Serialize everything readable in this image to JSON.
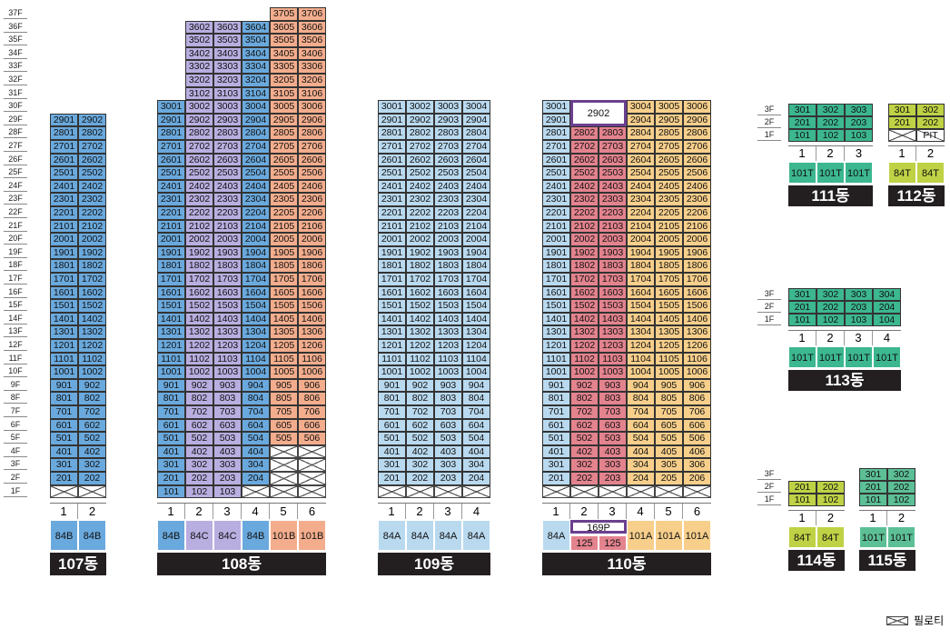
{
  "colors": {
    "b84A": "#b9d9ef",
    "b84B": "#6aa9dd",
    "p84C": "#b9aee0",
    "o101B": "#f3ad8d",
    "r125": "#e3838e",
    "y101A": "#f7cf8b",
    "g101T": "#3cb78f",
    "y84T": "#bfd245",
    "cg101T": "#5cbf96",
    "bldgBg": "#231f20"
  },
  "floor_labels": [
    "37F",
    "36F",
    "35F",
    "34F",
    "33F",
    "32F",
    "31F",
    "30F",
    "29F",
    "28F",
    "27F",
    "26F",
    "25F",
    "24F",
    "23F",
    "22F",
    "21F",
    "20F",
    "19F",
    "18F",
    "17F",
    "16F",
    "15F",
    "14F",
    "13F",
    "12F",
    "11F",
    "10F",
    "9F",
    "8F",
    "7F",
    "6F",
    "5F",
    "4F",
    "3F",
    "2F",
    "1F"
  ],
  "legend": {
    "label": "필로티"
  },
  "large_buildings": [
    {
      "id": "107",
      "name": "107동",
      "x": 55,
      "lines": 2,
      "top_floor": 29,
      "min_floor": 2,
      "line_colors": [
        "b84B",
        "b84B"
      ],
      "line_types": [
        "84B",
        "84B"
      ],
      "overrides": {}
    },
    {
      "id": "108",
      "name": "108동",
      "x": 173,
      "lines": 6,
      "top_floor": 37,
      "min_floor": 1,
      "line_colors": [
        "b84B",
        "p84C",
        "p84C",
        "b84B",
        "o101B",
        "o101B"
      ],
      "line_types": [
        "84B",
        "84C",
        "84C",
        "84B",
        "101B",
        "101B"
      ],
      "line_top": [
        30,
        36,
        36,
        36,
        37,
        37
      ],
      "line_min": [
        1,
        1,
        1,
        2,
        5,
        5
      ],
      "overrides": {}
    },
    {
      "id": "109",
      "name": "109동",
      "x": 416,
      "lines": 4,
      "top_floor": 30,
      "min_floor": 2,
      "line_colors": [
        "b84A",
        "b84A",
        "b84A",
        "b84A"
      ],
      "line_types": [
        "84A",
        "84A",
        "84A",
        "84A"
      ],
      "overrides": {}
    },
    {
      "id": "110",
      "name": "110동",
      "x": 597,
      "lines": 6,
      "top_floor": 30,
      "min_floor": 2,
      "line_colors": [
        "b84A",
        "r125",
        "r125",
        "y101A",
        "y101A",
        "y101A"
      ],
      "line_types": [
        "84A",
        "125",
        "125",
        "101A",
        "101A",
        "101A"
      ],
      "line_top": [
        30,
        28,
        28,
        30,
        30,
        30
      ],
      "special_2902": "2902",
      "special_169p": "169P",
      "overrides": {}
    }
  ],
  "small_buildings": [
    {
      "id": "111",
      "name": "111동",
      "x": 868,
      "y": 114,
      "lines": 3,
      "rows": [
        [
          "301",
          "302",
          "303"
        ],
        [
          "201",
          "202",
          "203"
        ],
        [
          "101",
          "102",
          "103"
        ]
      ],
      "color": "g101T",
      "types": [
        "101T",
        "101T",
        "101T"
      ],
      "pil": [],
      "pit": null
    },
    {
      "id": "112",
      "name": "112동",
      "x": 978,
      "y": 114,
      "lines": 2,
      "rows": [
        [
          "301",
          "302"
        ],
        [
          "201",
          "202"
        ],
        [
          "",
          ""
        ]
      ],
      "color": "y84T",
      "types": [
        "84T",
        "84T"
      ],
      "pil": [
        0
      ],
      "pit": "PIT"
    },
    {
      "id": "113",
      "name": "113동",
      "x": 868,
      "y": 317,
      "lines": 4,
      "rows": [
        [
          "301",
          "302",
          "303",
          "304"
        ],
        [
          "201",
          "202",
          "203",
          "204"
        ],
        [
          "101",
          "102",
          "103",
          "104"
        ]
      ],
      "color": "g101T",
      "types": [
        "101T",
        "101T",
        "101T",
        "101T"
      ],
      "pil": [],
      "pit": null
    },
    {
      "id": "114",
      "name": "114동",
      "x": 868,
      "y": 529,
      "lines": 2,
      "rows": [
        [
          "201",
          "202"
        ],
        [
          "101",
          "102"
        ]
      ],
      "color": "y84T",
      "types": [
        "84T",
        "84T"
      ],
      "pil": [],
      "pit": null
    },
    {
      "id": "115",
      "name": "115동",
      "x": 946,
      "y": 515,
      "lines": 2,
      "rows": [
        [
          "301",
          "302"
        ],
        [
          "201",
          "202"
        ],
        [
          "101",
          "102"
        ]
      ],
      "color": "cg101T",
      "types": [
        "101T",
        "101T"
      ],
      "pil": [],
      "pit": null
    }
  ],
  "small_floor_labels": [
    "3F",
    "2F",
    "1F"
  ]
}
